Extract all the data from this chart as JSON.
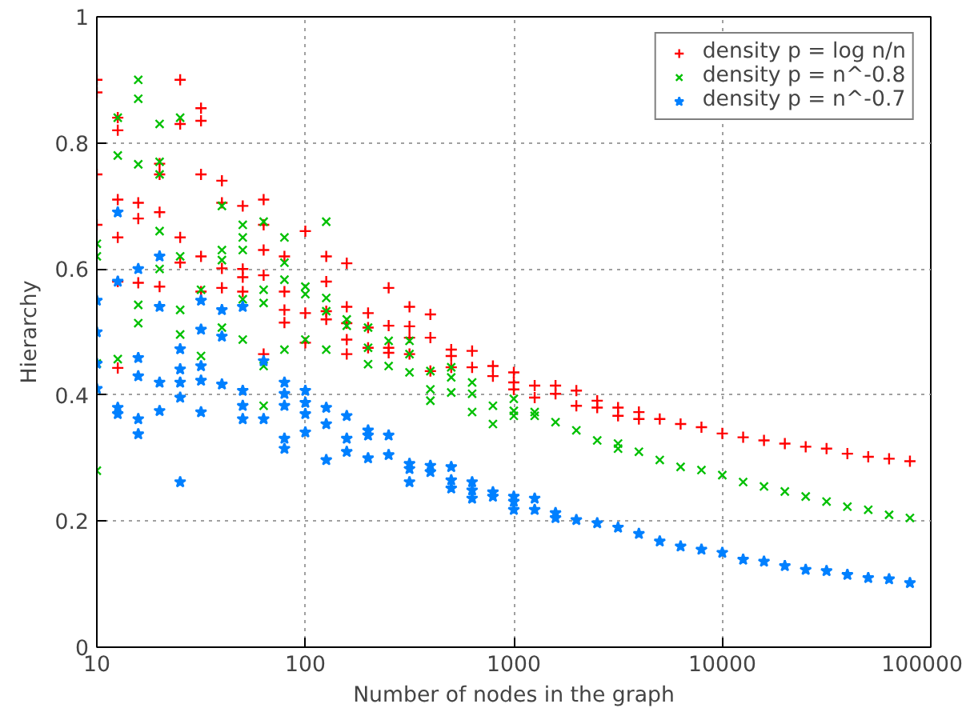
{
  "chart_data": {
    "type": "scatter",
    "xlabel": "Number of nodes in the graph",
    "ylabel": "Hierarchy",
    "log": "x",
    "xlim": [
      10,
      100000
    ],
    "xticks": [
      10,
      100,
      1000,
      10000,
      100000
    ],
    "ylim": [
      0,
      1
    ],
    "yticks": [
      0,
      0.2,
      0.4,
      0.6,
      0.8,
      1
    ],
    "grid": true,
    "legend": "top right",
    "series": [
      {
        "name": "density p = log n/n",
        "color": "#ff0000",
        "marker": "cross",
        "x": [
          10,
          10,
          10,
          10,
          12.6,
          12.6,
          12.6,
          12.6,
          12.6,
          12.6,
          15.8,
          15.8,
          15.8,
          20,
          20,
          20,
          20,
          25.1,
          25.1,
          25.1,
          25.1,
          31.6,
          31.6,
          31.6,
          31.6,
          31.6,
          39.8,
          39.8,
          39.8,
          39.8,
          50.1,
          50.1,
          50.1,
          50.1,
          63.1,
          63.1,
          63.1,
          63.1,
          63.1,
          79.4,
          79.4,
          79.4,
          79.4,
          100,
          100,
          100,
          126,
          126,
          126,
          126,
          158,
          158,
          158,
          158,
          158,
          200,
          200,
          200,
          251,
          251,
          251,
          251,
          316,
          316,
          316,
          316,
          398,
          398,
          398,
          501,
          501,
          501,
          631,
          631,
          794,
          794,
          1000,
          1000,
          1000,
          1259,
          1259,
          1585,
          1585,
          1995,
          1995,
          2512,
          2512,
          3162,
          3162,
          3981,
          3981,
          5012,
          6310,
          7943,
          10000,
          12589,
          15849,
          19953,
          25119,
          31623,
          39811,
          50119,
          63096,
          79433
        ],
        "values": [
          0.9,
          0.88,
          0.75,
          0.67,
          0.84,
          0.82,
          0.71,
          0.65,
          0.58,
          0.443,
          0.705,
          0.68,
          0.578,
          0.767,
          0.75,
          0.69,
          0.572,
          0.9,
          0.83,
          0.65,
          0.61,
          0.855,
          0.835,
          0.75,
          0.62,
          0.564,
          0.74,
          0.705,
          0.601,
          0.57,
          0.7,
          0.6,
          0.587,
          0.564,
          0.71,
          0.67,
          0.63,
          0.59,
          0.465,
          0.62,
          0.564,
          0.535,
          0.515,
          0.66,
          0.53,
          0.483,
          0.62,
          0.58,
          0.533,
          0.52,
          0.609,
          0.54,
          0.514,
          0.488,
          0.465,
          0.53,
          0.507,
          0.475,
          0.57,
          0.51,
          0.475,
          0.467,
          0.54,
          0.509,
          0.491,
          0.465,
          0.528,
          0.491,
          0.438,
          0.472,
          0.462,
          0.444,
          0.47,
          0.444,
          0.446,
          0.43,
          0.436,
          0.42,
          0.409,
          0.415,
          0.396,
          0.415,
          0.402,
          0.407,
          0.383,
          0.391,
          0.38,
          0.38,
          0.367,
          0.373,
          0.362,
          0.362,
          0.354,
          0.349,
          0.339,
          0.333,
          0.328,
          0.323,
          0.318,
          0.315,
          0.307,
          0.302,
          0.299,
          0.295
        ]
      },
      {
        "name": "density p = n^-0.8",
        "color": "#00c000",
        "marker": "x",
        "x": [
          10,
          10,
          10,
          10,
          12.6,
          12.6,
          12.6,
          15.8,
          15.8,
          15.8,
          15.8,
          15.8,
          20,
          20,
          20,
          20,
          20,
          25.1,
          25.1,
          25.1,
          25.1,
          31.6,
          31.6,
          39.8,
          39.8,
          39.8,
          39.8,
          50.1,
          50.1,
          50.1,
          50.1,
          50.1,
          63.1,
          63.1,
          63.1,
          63.1,
          63.1,
          79.4,
          79.4,
          79.4,
          79.4,
          100,
          100,
          100,
          126,
          126,
          126,
          126,
          158,
          158,
          200,
          200,
          200,
          251,
          251,
          316,
          316,
          316,
          398,
          398,
          398,
          501,
          501,
          501,
          631,
          631,
          631,
          794,
          794,
          1000,
          1000,
          1000,
          1259,
          1259,
          1585,
          1995,
          2512,
          3162,
          3162,
          3981,
          5012,
          6310,
          7943,
          10000,
          12589,
          15849,
          19953,
          25119,
          31623,
          39811,
          50119,
          63096,
          79433
        ],
        "values": [
          0.64,
          0.62,
          0.45,
          0.28,
          0.84,
          0.78,
          0.457,
          0.9,
          0.87,
          0.766,
          0.543,
          0.514,
          0.83,
          0.77,
          0.75,
          0.66,
          0.6,
          0.84,
          0.62,
          0.535,
          0.496,
          0.567,
          0.462,
          0.7,
          0.63,
          0.614,
          0.507,
          0.67,
          0.65,
          0.63,
          0.552,
          0.488,
          0.675,
          0.567,
          0.546,
          0.446,
          0.383,
          0.65,
          0.61,
          0.583,
          0.472,
          0.572,
          0.56,
          0.488,
          0.675,
          0.554,
          0.533,
          0.472,
          0.52,
          0.51,
          0.507,
          0.475,
          0.449,
          0.486,
          0.446,
          0.486,
          0.465,
          0.436,
          0.438,
          0.409,
          0.391,
          0.444,
          0.428,
          0.404,
          0.42,
          0.402,
          0.373,
          0.383,
          0.354,
          0.394,
          0.375,
          0.367,
          0.373,
          0.367,
          0.357,
          0.344,
          0.328,
          0.323,
          0.315,
          0.31,
          0.297,
          0.286,
          0.281,
          0.273,
          0.262,
          0.255,
          0.247,
          0.239,
          0.231,
          0.223,
          0.218,
          0.21,
          0.205
        ]
      },
      {
        "name": "density p = n^-0.7",
        "color": "#0080ff",
        "marker": "star",
        "x": [
          10,
          10,
          10,
          10,
          12.6,
          12.6,
          12.6,
          12.6,
          15.8,
          15.8,
          15.8,
          15.8,
          15.8,
          20,
          20,
          20,
          20,
          25.1,
          25.1,
          25.1,
          25.1,
          25.1,
          31.6,
          31.6,
          31.6,
          31.6,
          31.6,
          39.8,
          39.8,
          39.8,
          50.1,
          50.1,
          50.1,
          50.1,
          63.1,
          63.1,
          79.4,
          79.4,
          79.4,
          79.4,
          79.4,
          100,
          100,
          100,
          100,
          126,
          126,
          126,
          158,
          158,
          158,
          200,
          200,
          200,
          251,
          251,
          316,
          316,
          316,
          398,
          398,
          501,
          501,
          501,
          631,
          631,
          631,
          794,
          794,
          1000,
          1000,
          1000,
          1259,
          1259,
          1585,
          1585,
          1995,
          2512,
          3162,
          3981,
          5012,
          6310,
          7943,
          10000,
          12589,
          15849,
          19953,
          25119,
          31623,
          39811,
          50119,
          63096,
          79433
        ],
        "values": [
          0.55,
          0.5,
          0.45,
          0.41,
          0.69,
          0.58,
          0.38,
          0.37,
          0.6,
          0.459,
          0.43,
          0.362,
          0.338,
          0.62,
          0.54,
          0.42,
          0.375,
          0.473,
          0.441,
          0.42,
          0.396,
          0.262,
          0.55,
          0.504,
          0.446,
          0.423,
          0.373,
          0.535,
          0.493,
          0.417,
          0.54,
          0.407,
          0.383,
          0.362,
          0.454,
          0.362,
          0.42,
          0.402,
          0.383,
          0.331,
          0.315,
          0.407,
          0.388,
          0.37,
          0.341,
          0.38,
          0.354,
          0.297,
          0.367,
          0.331,
          0.31,
          0.344,
          0.336,
          0.3,
          0.336,
          0.305,
          0.291,
          0.283,
          0.262,
          0.288,
          0.278,
          0.286,
          0.265,
          0.252,
          0.262,
          0.249,
          0.236,
          0.246,
          0.239,
          0.239,
          0.231,
          0.218,
          0.236,
          0.218,
          0.213,
          0.205,
          0.202,
          0.197,
          0.19,
          0.18,
          0.168,
          0.16,
          0.155,
          0.15,
          0.139,
          0.136,
          0.129,
          0.123,
          0.121,
          0.115,
          0.11,
          0.108,
          0.102
        ]
      }
    ]
  }
}
